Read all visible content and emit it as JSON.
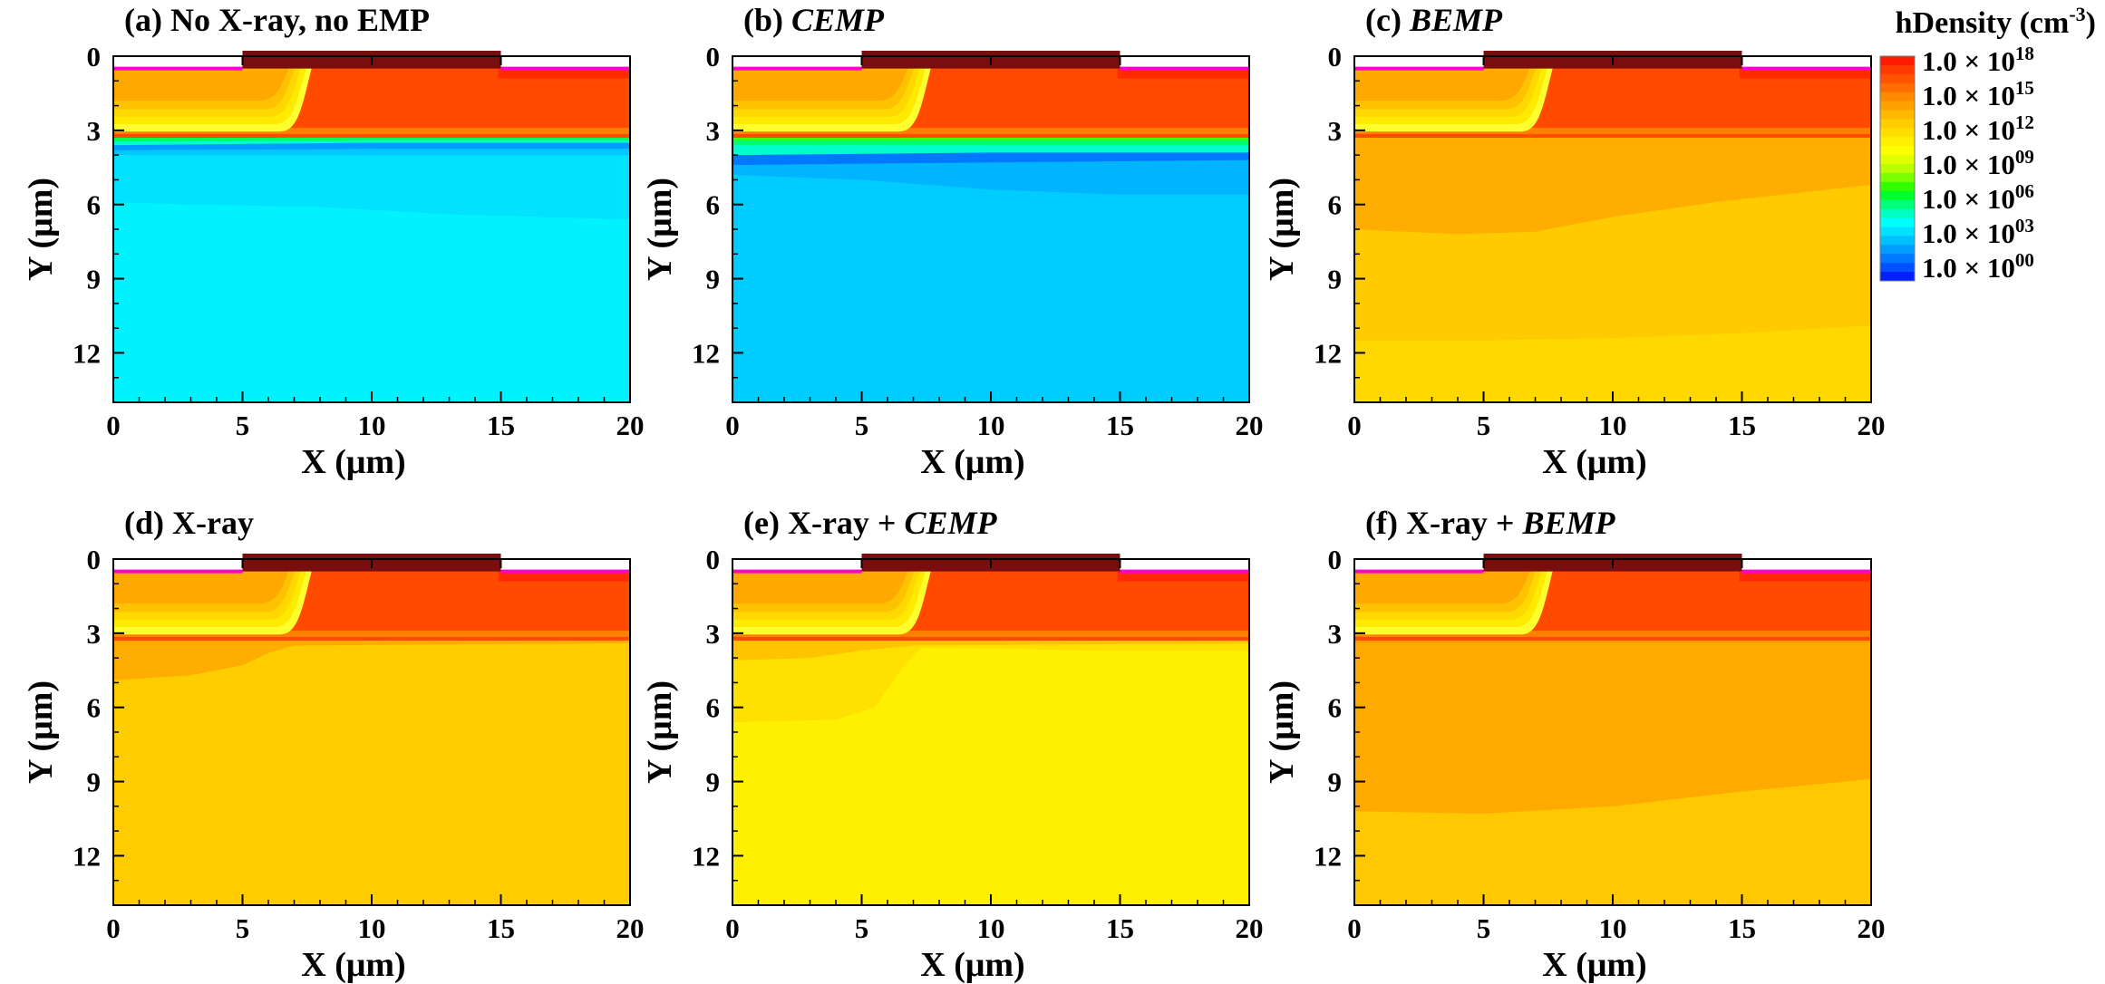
{
  "figure": {
    "xlabel": "X (μm)",
    "ylabel": "Y (μm)",
    "xticks": [
      "0",
      "5",
      "10",
      "15",
      "20"
    ],
    "yticks": [
      "0",
      "3",
      "6",
      "9",
      "12"
    ]
  },
  "colorbar": {
    "title_prefix": "hDensity (cm",
    "title_sup": "-3",
    "title_suffix": ")",
    "labels": [
      {
        "base": "1.0 × 10",
        "exp": "18"
      },
      {
        "base": "1.0 × 10",
        "exp": "15"
      },
      {
        "base": "1.0 × 10",
        "exp": "12"
      },
      {
        "base": "1.0 × 10",
        "exp": "09"
      },
      {
        "base": "1.0 × 10",
        "exp": "06"
      },
      {
        "base": "1.0 × 10",
        "exp": "03"
      },
      {
        "base": "1.0 × 10",
        "exp": "00"
      }
    ],
    "colors": [
      "#ff1a00",
      "#ff3a00",
      "#ff5200",
      "#ff6c00",
      "#ff8a00",
      "#ffa200",
      "#ffb800",
      "#ffcc00",
      "#ffde00",
      "#fff000",
      "#fbff00",
      "#e0ff00",
      "#b8ff00",
      "#7cff00",
      "#30ff00",
      "#00ff28",
      "#00ff7a",
      "#00ffc0",
      "#00ffff",
      "#00e2ff",
      "#00c0ff",
      "#009cff",
      "#0078ff",
      "#0050ff",
      "#0020ff"
    ]
  },
  "chart_data": [
    {
      "panel": "a",
      "label_plain": "(a) No X-ray, no EMP",
      "label_italic": "",
      "type": "heatmap",
      "xlabel": "X (μm)",
      "ylabel": "Y (μm)",
      "xlim": [
        0,
        20
      ],
      "ylim": [
        0,
        14
      ],
      "background": "#00f2ff",
      "regions": [
        {
          "color": "#00e2ff",
          "boundary": [
            [
              0,
              5.9
            ],
            [
              3,
              6.0
            ],
            [
              8,
              6.1
            ],
            [
              13,
              6.4
            ],
            [
              20,
              6.6
            ]
          ]
        },
        {
          "color": "#00c8ff",
          "boundary": [
            [
              0,
              4.0
            ],
            [
              10,
              4.0
            ],
            [
              20,
              4.0
            ]
          ]
        },
        {
          "color": "#009cff",
          "boundary": [
            [
              0,
              3.8
            ],
            [
              10,
              3.75
            ],
            [
              20,
              3.75
            ]
          ]
        },
        {
          "color": "#00ffcc",
          "boundary": [
            [
              0,
              3.6
            ],
            [
              10,
              3.5
            ],
            [
              20,
              3.5
            ]
          ]
        },
        {
          "color": "#00ff5a",
          "boundary": [
            [
              0,
              3.45
            ],
            [
              10,
              3.4
            ],
            [
              20,
              3.4
            ]
          ]
        },
        {
          "color": "#ffa200",
          "boundary": [
            [
              0,
              3.3
            ],
            [
              20,
              3.3
            ]
          ]
        }
      ]
    },
    {
      "panel": "b",
      "label_plain": "(b) ",
      "label_italic": "CEMP",
      "type": "heatmap",
      "xlabel": "X (μm)",
      "ylabel": "Y (μm)",
      "xlim": [
        0,
        20
      ],
      "ylim": [
        0,
        14
      ],
      "background": "#00ccff",
      "regions": [
        {
          "color": "#00b4ff",
          "boundary": [
            [
              0,
              4.8
            ],
            [
              5,
              5.0
            ],
            [
              10,
              5.4
            ],
            [
              15,
              5.6
            ],
            [
              20,
              5.6
            ]
          ]
        },
        {
          "color": "#0078ff",
          "boundary": [
            [
              0,
              4.4
            ],
            [
              10,
              4.3
            ],
            [
              20,
              4.2
            ]
          ]
        },
        {
          "color": "#00ffcc",
          "boundary": [
            [
              0,
              4.0
            ],
            [
              10,
              3.9
            ],
            [
              20,
              3.9
            ]
          ]
        },
        {
          "color": "#00ff70",
          "boundary": [
            [
              0,
              3.6
            ],
            [
              20,
              3.6
            ]
          ]
        },
        {
          "color": "#40ff00",
          "boundary": [
            [
              0,
              3.4
            ],
            [
              20,
              3.4
            ]
          ]
        },
        {
          "color": "#ffa200",
          "boundary": [
            [
              0,
              3.3
            ],
            [
              20,
              3.3
            ]
          ]
        }
      ]
    },
    {
      "panel": "c",
      "label_plain": "(c) ",
      "label_italic": "BEMP",
      "type": "heatmap",
      "xlabel": "X (μm)",
      "ylabel": "Y (μm)",
      "xlim": [
        0,
        20
      ],
      "ylim": [
        0,
        14
      ],
      "background": "#ffd800",
      "regions": [
        {
          "color": "#ffca00",
          "boundary": [
            [
              0,
              11.5
            ],
            [
              5,
              11.5
            ],
            [
              10,
              11.4
            ],
            [
              15,
              11.2
            ],
            [
              20,
              10.9
            ]
          ]
        },
        {
          "color": "#ffae00",
          "boundary": [
            [
              0,
              7.0
            ],
            [
              4,
              7.2
            ],
            [
              7,
              7.1
            ],
            [
              10,
              6.5
            ],
            [
              14,
              5.9
            ],
            [
              20,
              5.2
            ]
          ]
        },
        {
          "color": "#ff9c00",
          "boundary": [
            [
              0,
              3.3
            ],
            [
              20,
              3.3
            ]
          ]
        }
      ]
    },
    {
      "panel": "d",
      "label_plain": "(d) X-ray",
      "label_italic": "",
      "type": "heatmap",
      "xlabel": "X (μm)",
      "ylabel": "Y (μm)",
      "xlim": [
        0,
        20
      ],
      "ylim": [
        0,
        14
      ],
      "background": "#ffcc00",
      "regions": [
        {
          "color": "#ffae00",
          "boundary": [
            [
              0,
              4.9
            ],
            [
              3,
              4.7
            ],
            [
              5,
              4.3
            ],
            [
              6,
              3.8
            ],
            [
              7,
              3.5
            ],
            [
              20,
              3.4
            ]
          ]
        },
        {
          "color": "#ff9c00",
          "boundary": [
            [
              0,
              3.3
            ],
            [
              20,
              3.3
            ]
          ]
        }
      ]
    },
    {
      "panel": "e",
      "label_plain": "(e) X-ray + ",
      "label_italic": "CEMP",
      "type": "heatmap",
      "xlabel": "X (μm)",
      "ylabel": "Y (μm)",
      "xlim": [
        0,
        20
      ],
      "ylim": [
        0,
        14
      ],
      "background": "#fff000",
      "regions": [
        {
          "color": "#ffe000",
          "boundary": [
            [
              0,
              6.6
            ],
            [
              4,
              6.5
            ],
            [
              5.5,
              6.0
            ],
            [
              6.5,
              4.5
            ],
            [
              7.3,
              3.6
            ],
            [
              9,
              3.6
            ],
            [
              14,
              3.7
            ],
            [
              20,
              3.7
            ]
          ]
        },
        {
          "color": "#ffc400",
          "boundary": [
            [
              0,
              4.1
            ],
            [
              3,
              4.0
            ],
            [
              5,
              3.7
            ],
            [
              7,
              3.5
            ],
            [
              20,
              3.4
            ]
          ]
        },
        {
          "color": "#ff9c00",
          "boundary": [
            [
              0,
              3.3
            ],
            [
              20,
              3.3
            ]
          ]
        }
      ]
    },
    {
      "panel": "f",
      "label_plain": "(f) X-ray + ",
      "label_italic": "BEMP",
      "type": "heatmap",
      "xlabel": "X (μm)",
      "ylabel": "Y (μm)",
      "xlim": [
        0,
        20
      ],
      "ylim": [
        0,
        14
      ],
      "background": "#ffc800",
      "regions": [
        {
          "color": "#ffaa00",
          "boundary": [
            [
              0,
              10.2
            ],
            [
              5,
              10.3
            ],
            [
              10,
              10.0
            ],
            [
              15,
              9.4
            ],
            [
              20,
              8.9
            ]
          ]
        },
        {
          "color": "#ffa000",
          "boundary": [
            [
              0,
              3.4
            ],
            [
              20,
              3.4
            ]
          ]
        }
      ]
    }
  ],
  "device": {
    "substrate_layers": [
      {
        "color": "#ff4a00",
        "depth_um": 3.3
      },
      {
        "color": "#ff8000",
        "depth_um": 3.15
      },
      {
        "color": "#ffa000",
        "depth_um": 2.9
      }
    ],
    "junction_bands": [
      "#ffff30",
      "#ffea00",
      "#ffd800",
      "#ffc200",
      "#ffa800"
    ],
    "contact_color": "#7a0e0e",
    "oxide_color": "#ff00cc",
    "gate_x_um": [
      5,
      15
    ]
  }
}
